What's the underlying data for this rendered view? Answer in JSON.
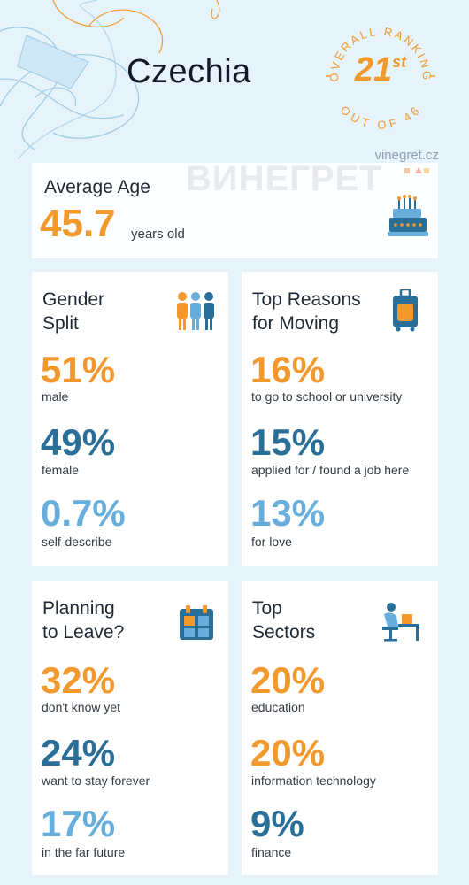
{
  "header": {
    "country": "Czechia",
    "ranking": {
      "curved_top": "OVERALL RANKING",
      "curved_bottom": "OUT OF 46",
      "rank": "21",
      "suffix": "st"
    }
  },
  "watermark": {
    "url": "vinegret.cz",
    "logo": "ВИНЕГРЕТ"
  },
  "average_age": {
    "title": "Average Age",
    "value": "45.7",
    "unit": "years old",
    "icon": "cake-icon"
  },
  "gender_split": {
    "title_line1": "Gender",
    "title_line2": "Split",
    "icon": "people-icon",
    "items": [
      {
        "value": "51%",
        "label": "male"
      },
      {
        "value": "49%",
        "label": "female"
      },
      {
        "value": "0.7%",
        "label": "self-describe"
      }
    ]
  },
  "reasons": {
    "title_line1": "Top Reasons",
    "title_line2": "for Moving",
    "icon": "suitcase-icon",
    "items": [
      {
        "value": "16%",
        "label": "to go to school or university"
      },
      {
        "value": "15%",
        "label": "applied for / found a job here"
      },
      {
        "value": "13%",
        "label": "for love"
      }
    ]
  },
  "planning": {
    "title_line1": "Planning",
    "title_line2": "to Leave?",
    "icon": "calendar-icon",
    "items": [
      {
        "value": "32%",
        "label": "don't know yet"
      },
      {
        "value": "24%",
        "label": "want to stay forever"
      },
      {
        "value": "17%",
        "label": "in the far future"
      }
    ]
  },
  "sectors": {
    "title_line1": "Top",
    "title_line2": "Sectors",
    "icon": "desk-worker-icon",
    "items": [
      {
        "value": "20%",
        "label": "education"
      },
      {
        "value": "20%",
        "label": "information technology"
      },
      {
        "value": "9%",
        "label": "finance"
      }
    ]
  },
  "colors": {
    "orange": "#f2992e",
    "dark_blue": "#2a6f97",
    "light_blue": "#67aedd",
    "background": "#e6f3fb"
  }
}
